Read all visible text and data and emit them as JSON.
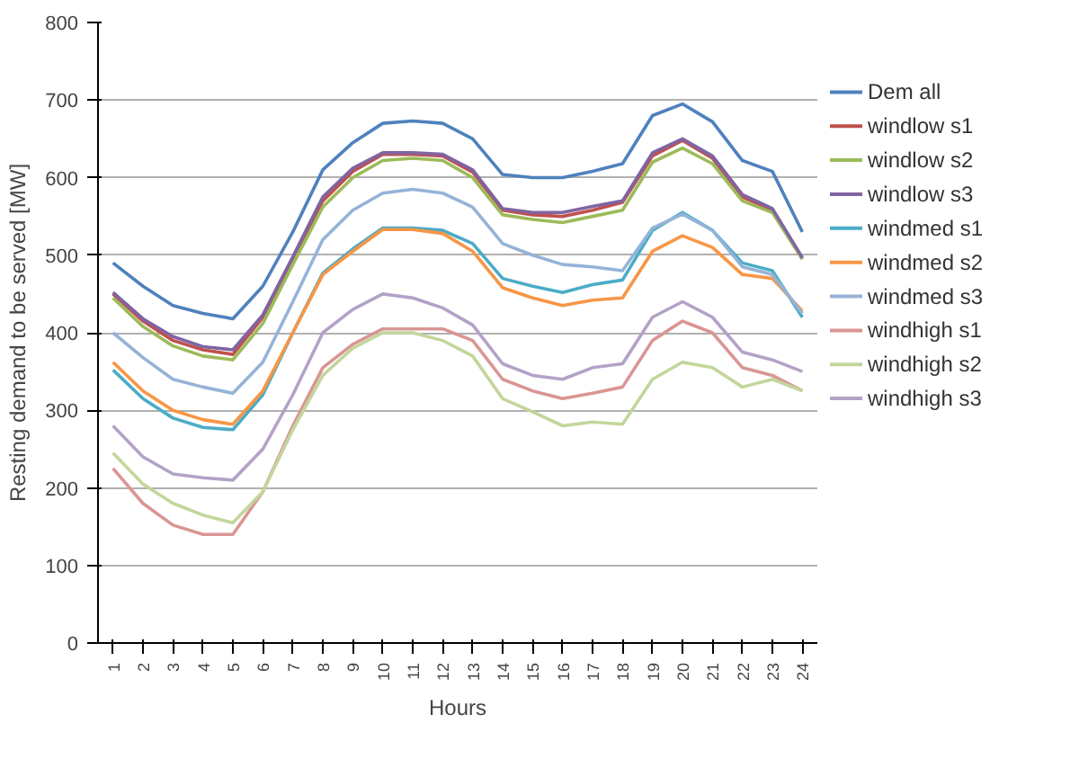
{
  "chart_data": {
    "type": "line",
    "xlabel": "Hours",
    "ylabel": "Resting demand to be served [MW]",
    "categories": [
      "1",
      "2",
      "3",
      "4",
      "5",
      "6",
      "7",
      "8",
      "9",
      "10",
      "11",
      "12",
      "13",
      "14",
      "15",
      "16",
      "17",
      "18",
      "19",
      "20",
      "21",
      "22",
      "23",
      "24"
    ],
    "ylim": [
      0,
      800
    ],
    "yticks": [
      0,
      100,
      200,
      300,
      400,
      500,
      600,
      700,
      800
    ],
    "grid": "y",
    "legend": "right",
    "marker": "none",
    "line_style": "solid",
    "series": [
      {
        "name": "Dem all",
        "color": "#4f81bd",
        "values": [
          490,
          460,
          435,
          425,
          418,
          460,
          530,
          610,
          645,
          670,
          673,
          670,
          650,
          604,
          600,
          600,
          608,
          618,
          680,
          695,
          672,
          622,
          608,
          530
        ]
      },
      {
        "name": "windlow s1",
        "color": "#c0504d",
        "values": [
          450,
          415,
          390,
          378,
          372,
          420,
          495,
          570,
          608,
          630,
          630,
          628,
          607,
          558,
          552,
          550,
          558,
          568,
          628,
          648,
          625,
          575,
          558,
          495
        ]
      },
      {
        "name": "windlow s2",
        "color": "#9bbb59",
        "values": [
          445,
          408,
          383,
          370,
          365,
          412,
          488,
          562,
          600,
          622,
          625,
          622,
          600,
          552,
          546,
          542,
          550,
          558,
          620,
          638,
          618,
          570,
          555,
          495
        ]
      },
      {
        "name": "windlow s3",
        "color": "#8064a2",
        "values": [
          452,
          418,
          395,
          382,
          378,
          423,
          498,
          575,
          612,
          632,
          632,
          630,
          610,
          560,
          555,
          555,
          563,
          570,
          632,
          650,
          628,
          578,
          560,
          497
        ]
      },
      {
        "name": "windmed s1",
        "color": "#4bacc6",
        "values": [
          352,
          315,
          290,
          278,
          275,
          320,
          400,
          477,
          508,
          535,
          535,
          532,
          515,
          470,
          460,
          452,
          462,
          468,
          532,
          555,
          532,
          490,
          480,
          420
        ]
      },
      {
        "name": "windmed s2",
        "color": "#f79646",
        "values": [
          362,
          325,
          300,
          288,
          282,
          325,
          400,
          475,
          505,
          533,
          533,
          528,
          505,
          458,
          445,
          435,
          442,
          445,
          505,
          525,
          510,
          475,
          470,
          428
        ]
      },
      {
        "name": "windmed s3",
        "color": "#95b3d7",
        "values": [
          400,
          368,
          340,
          330,
          322,
          362,
          440,
          520,
          558,
          580,
          585,
          580,
          562,
          515,
          500,
          488,
          485,
          480,
          535,
          553,
          532,
          485,
          475,
          425
        ]
      },
      {
        "name": "windhigh s1",
        "color": "#d99694",
        "values": [
          225,
          180,
          152,
          140,
          140,
          195,
          280,
          355,
          385,
          405,
          405,
          405,
          390,
          340,
          325,
          315,
          322,
          330,
          390,
          415,
          400,
          355,
          345,
          325
        ]
      },
      {
        "name": "windhigh s2",
        "color": "#c3d69b",
        "values": [
          245,
          205,
          180,
          165,
          155,
          195,
          275,
          345,
          380,
          400,
          400,
          390,
          370,
          315,
          298,
          280,
          285,
          282,
          340,
          362,
          355,
          330,
          340,
          325
        ]
      },
      {
        "name": "windhigh s3",
        "color": "#b3a2c7",
        "values": [
          280,
          240,
          218,
          213,
          210,
          250,
          320,
          400,
          430,
          450,
          445,
          432,
          410,
          360,
          345,
          340,
          355,
          360,
          420,
          440,
          420,
          375,
          365,
          350
        ]
      }
    ]
  }
}
